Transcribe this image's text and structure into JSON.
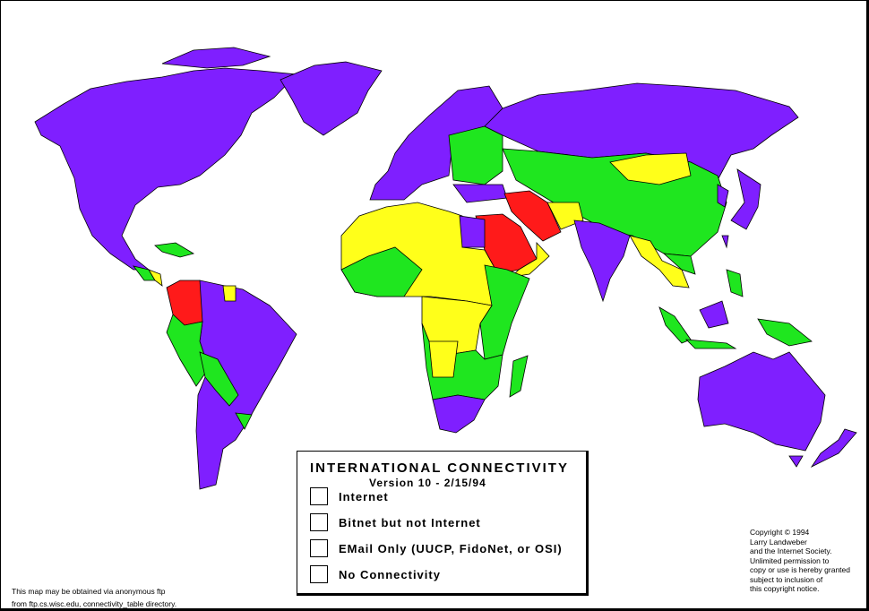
{
  "legend": {
    "title": "INTERNATIONAL CONNECTIVITY",
    "version": "Version 10 - 2/15/94",
    "items": [
      {
        "label": "Internet",
        "color": "#7f1fff"
      },
      {
        "label": "Bitnet but not Internet",
        "color": "#ff1a1a"
      },
      {
        "label": "EMail Only (UUCP, FidoNet, or OSI)",
        "color": "#1fe61f"
      },
      {
        "label": "No Connectivity",
        "color": "#ffff1a"
      }
    ]
  },
  "copyright": "Copyright © 1994\nLarry Landweber\nand the Internet Society.\nUnlimited permission to\ncopy or use is hereby granted\nsubject to inclusion of\nthis copyright notice.",
  "ftp_note": "This map may be obtained via anonymous ftp\nfrom ftp.cs.wisc.edu, connectivity_table directory."
}
